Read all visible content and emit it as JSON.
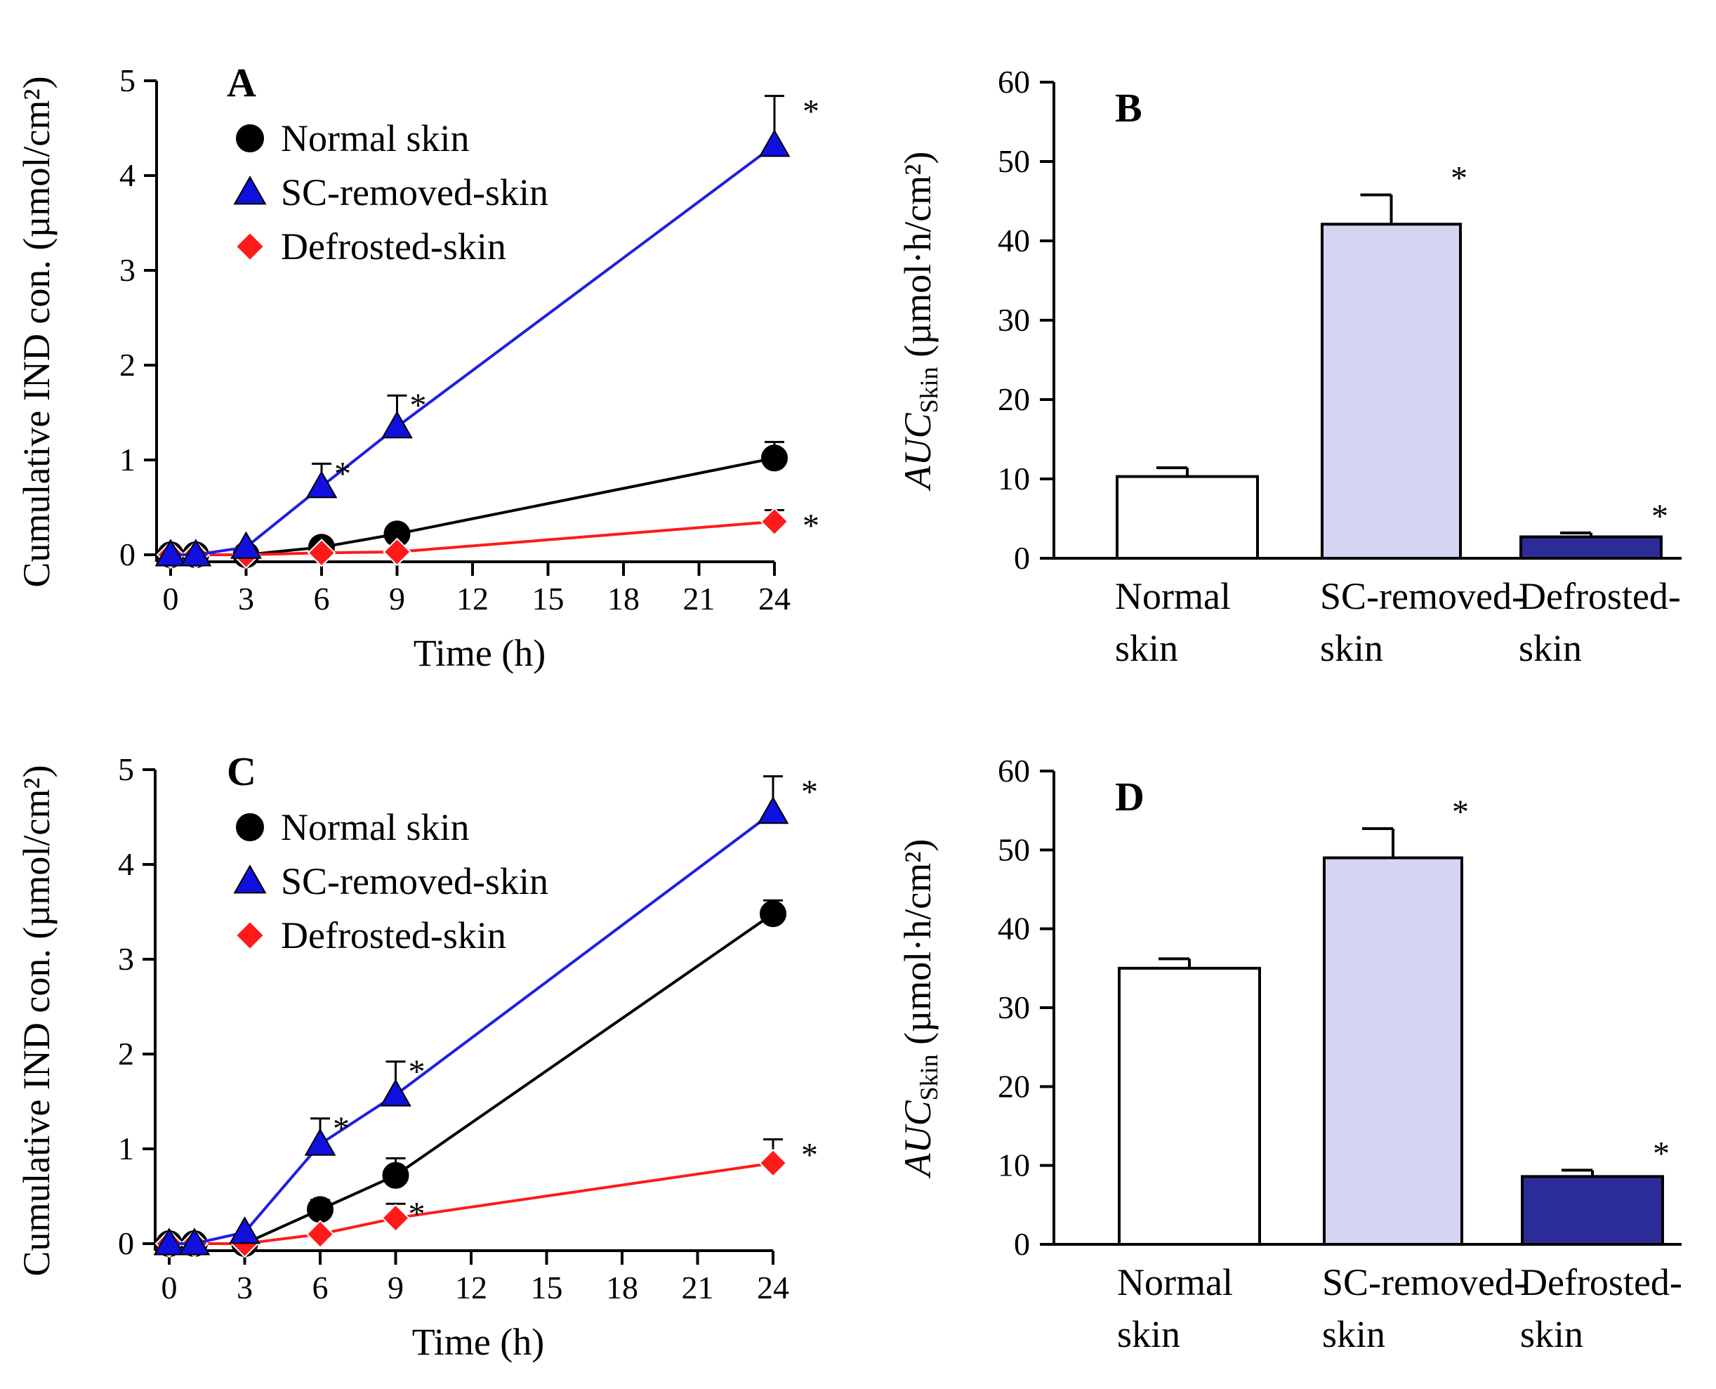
{
  "figure": {
    "colors": {
      "normal_line": "#000000",
      "normal_marker": "#000000",
      "sc_line": "#1f1fe0",
      "sc_marker": "#1010e0",
      "def_line": "#ff1a1a",
      "def_marker": "#ff1a1a",
      "bar_normal": "#ffffff",
      "bar_sc": "#d5d5f2",
      "bar_def": "#2c2c99",
      "axis": "#000000"
    }
  },
  "chart_data": [
    {
      "panel": "A",
      "type": "line",
      "letter": "A",
      "xlabel": "Time (h)",
      "ylabel": "Cumulative IND con. (µmol/cm²)",
      "x": [
        0,
        1,
        3,
        6,
        9,
        24
      ],
      "xticks": [
        0,
        3,
        6,
        9,
        12,
        15,
        18,
        21,
        24
      ],
      "xlim": [
        0,
        24
      ],
      "yticks": [
        0,
        1,
        2,
        3,
        4,
        5
      ],
      "ylim": [
        0,
        5
      ],
      "legend_position": "top-left",
      "significance_marker": "*",
      "series": [
        {
          "name": "Normal skin",
          "marker": "circle",
          "values": [
            0,
            0,
            0,
            0.08,
            0.22,
            1.02
          ],
          "errors": [
            0,
            0,
            0,
            0.04,
            0.08,
            0.17
          ],
          "significant": [
            false,
            false,
            false,
            false,
            false,
            false
          ]
        },
        {
          "name": "SC-removed-skin",
          "marker": "triangle",
          "values": [
            0,
            0,
            0.08,
            0.72,
            1.35,
            4.32
          ],
          "errors": [
            0,
            0,
            0.02,
            0.24,
            0.33,
            0.52
          ],
          "significant": [
            false,
            false,
            false,
            true,
            true,
            true
          ]
        },
        {
          "name": "Defrosted-skin",
          "marker": "diamond",
          "values": [
            0,
            0,
            0,
            0.02,
            0.03,
            0.35
          ],
          "errors": [
            0,
            0,
            0,
            0,
            0.01,
            0.12
          ],
          "significant": [
            false,
            false,
            false,
            false,
            false,
            true
          ]
        }
      ]
    },
    {
      "panel": "B",
      "type": "bar",
      "letter": "B",
      "ylabel_main": "AUC",
      "ylabel_sub": "Skin",
      "ylabel_unit": " (µmol·h/cm²)",
      "categories": [
        "Normal skin",
        "SC-removed-skin",
        "Defrosted-skin"
      ],
      "category_lines": [
        [
          "Normal",
          "skin"
        ],
        [
          "SC-removed-",
          "skin"
        ],
        [
          "Defrosted-",
          "skin"
        ]
      ],
      "values": [
        10.3,
        42.1,
        2.7
      ],
      "errors": [
        1.1,
        3.7,
        0.5
      ],
      "significant": [
        false,
        true,
        true
      ],
      "significance_marker": "*",
      "yticks": [
        0,
        10,
        20,
        30,
        40,
        50,
        60
      ],
      "ylim": [
        0,
        60
      ]
    },
    {
      "panel": "C",
      "type": "line",
      "letter": "C",
      "xlabel": "Time (h)",
      "ylabel": "Cumulative IND con. (µmol/cm²)",
      "x": [
        0,
        1,
        3,
        6,
        9,
        24
      ],
      "xticks": [
        0,
        3,
        6,
        9,
        12,
        15,
        18,
        21,
        24
      ],
      "xlim": [
        0,
        24
      ],
      "yticks": [
        0,
        1,
        2,
        3,
        4,
        5
      ],
      "ylim": [
        0,
        5
      ],
      "legend_position": "top-left",
      "significance_marker": "*",
      "series": [
        {
          "name": "Normal skin",
          "marker": "circle",
          "values": [
            0,
            0,
            0,
            0.36,
            0.72,
            3.48
          ],
          "errors": [
            0,
            0,
            0,
            0.1,
            0.18,
            0.14
          ],
          "significant": [
            false,
            false,
            false,
            false,
            false,
            false
          ]
        },
        {
          "name": "SC-removed-skin",
          "marker": "triangle",
          "values": [
            0,
            0,
            0.12,
            1.05,
            1.57,
            4.55
          ],
          "errors": [
            0,
            0,
            0.03,
            0.27,
            0.35,
            0.38
          ],
          "significant": [
            false,
            false,
            false,
            true,
            true,
            true
          ]
        },
        {
          "name": "Defrosted-skin",
          "marker": "diamond",
          "values": [
            0,
            0,
            0,
            0.1,
            0.27,
            0.85
          ],
          "errors": [
            0,
            0,
            0,
            0.03,
            0.15,
            0.25
          ],
          "significant": [
            false,
            false,
            false,
            false,
            true,
            true
          ]
        }
      ]
    },
    {
      "panel": "D",
      "type": "bar",
      "letter": "D",
      "ylabel_main": "AUC",
      "ylabel_sub": "Skin",
      "ylabel_unit": " (µmol·h/cm²)",
      "categories": [
        "Normal skin",
        "SC-removed-skin",
        "Defrosted-skin"
      ],
      "category_lines": [
        [
          "Normal",
          "skin"
        ],
        [
          "SC-removed-",
          "skin"
        ],
        [
          "Defrosted-",
          "skin"
        ]
      ],
      "values": [
        35.0,
        49.0,
        8.6
      ],
      "errors": [
        1.2,
        3.7,
        0.8
      ],
      "significant": [
        false,
        true,
        true
      ],
      "significance_marker": "*",
      "yticks": [
        0,
        10,
        20,
        30,
        40,
        50,
        60
      ],
      "ylim": [
        0,
        60
      ]
    }
  ]
}
